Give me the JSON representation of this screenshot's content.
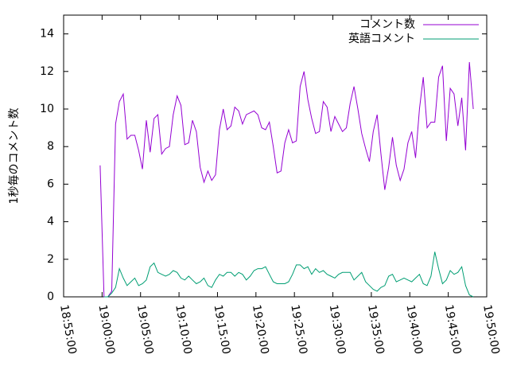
{
  "chart_data": {
    "type": "line",
    "y_label": "1秒毎のコメント数",
    "xlim": [
      "18:55:00",
      "19:50:00"
    ],
    "xticks": [
      "18:55:00",
      "19:00:00",
      "19:05:00",
      "19:10:00",
      "19:15:00",
      "19:20:00",
      "19:25:00",
      "19:30:00",
      "19:35:00",
      "19:40:00",
      "19:45:00",
      "19:50:00"
    ],
    "ylim": [
      0,
      15
    ],
    "yticks": [
      0,
      2,
      4,
      6,
      8,
      10,
      12,
      14
    ],
    "legend": "top right",
    "x": [
      "18:59:45",
      "19:00:15",
      "19:00:45",
      "19:01:15",
      "19:01:45",
      "19:02:15",
      "19:02:45",
      "19:03:15",
      "19:03:45",
      "19:04:15",
      "19:04:45",
      "19:05:15",
      "19:05:45",
      "19:06:15",
      "19:06:45",
      "19:07:15",
      "19:07:45",
      "19:08:15",
      "19:08:45",
      "19:09:15",
      "19:09:45",
      "19:10:15",
      "19:10:45",
      "19:11:15",
      "19:11:45",
      "19:12:15",
      "19:12:45",
      "19:13:15",
      "19:13:45",
      "19:14:15",
      "19:14:45",
      "19:15:15",
      "19:15:45",
      "19:16:15",
      "19:16:45",
      "19:17:15",
      "19:17:45",
      "19:18:15",
      "19:18:45",
      "19:19:15",
      "19:19:45",
      "19:20:15",
      "19:20:45",
      "19:21:15",
      "19:21:45",
      "19:22:15",
      "19:22:45",
      "19:23:15",
      "19:23:45",
      "19:24:15",
      "19:24:45",
      "19:25:15",
      "19:25:45",
      "19:26:15",
      "19:26:45",
      "19:27:15",
      "19:27:45",
      "19:28:15",
      "19:28:45",
      "19:29:15",
      "19:29:45",
      "19:30:15",
      "19:30:45",
      "19:31:15",
      "19:31:45",
      "19:32:15",
      "19:32:45",
      "19:33:15",
      "19:33:45",
      "19:34:15",
      "19:34:45",
      "19:35:15",
      "19:35:45",
      "19:36:15",
      "19:36:45",
      "19:37:15",
      "19:37:45",
      "19:38:15",
      "19:38:45",
      "19:39:15",
      "19:39:45",
      "19:40:15",
      "19:40:45",
      "19:41:15",
      "19:41:45",
      "19:42:15",
      "19:42:45",
      "19:43:15",
      "19:43:45",
      "19:44:15",
      "19:44:45",
      "19:45:15",
      "19:45:45",
      "19:46:15",
      "19:46:45",
      "19:47:15",
      "19:47:45",
      "19:48:15"
    ],
    "series": [
      {
        "name": "コメント数",
        "color": "#9400d3",
        "values": [
          7.0,
          0,
          0,
          0.3,
          9.2,
          10.4,
          10.8,
          8.4,
          8.6,
          8.6,
          7.8,
          6.8,
          9.4,
          7.7,
          9.5,
          9.7,
          7.6,
          7.9,
          8.0,
          9.7,
          10.7,
          10.2,
          8.1,
          8.2,
          9.4,
          8.8,
          6.9,
          6.1,
          6.7,
          6.2,
          6.5,
          8.9,
          10.0,
          8.9,
          9.1,
          10.1,
          9.9,
          9.2,
          9.7,
          9.8,
          9.9,
          9.7,
          9.0,
          8.9,
          9.3,
          8.0,
          6.6,
          6.7,
          8.2,
          8.9,
          8.2,
          8.3,
          11.2,
          12.0,
          10.5,
          9.5,
          8.7,
          8.8,
          10.4,
          10.1,
          8.8,
          9.6,
          9.2,
          8.8,
          9.0,
          10.3,
          11.2,
          10.0,
          8.7,
          7.9,
          7.2,
          8.8,
          9.7,
          7.6,
          5.7,
          6.9,
          8.5,
          7.0,
          6.2,
          6.8,
          8.2,
          8.8,
          7.4,
          10.0,
          11.7,
          9.0,
          9.3,
          9.3,
          11.7,
          12.3,
          8.3,
          11.1,
          10.8,
          9.1,
          10.6,
          7.8,
          12.5,
          10.0
        ]
      },
      {
        "name": "英語コメント",
        "color": "#009e73",
        "values": [
          null,
          0,
          0,
          0.2,
          0.5,
          1.5,
          1.0,
          0.6,
          0.8,
          1.0,
          0.6,
          0.7,
          0.9,
          1.6,
          1.8,
          1.3,
          1.2,
          1.1,
          1.2,
          1.4,
          1.3,
          1.0,
          0.9,
          1.1,
          0.9,
          0.7,
          0.8,
          1.0,
          0.6,
          0.5,
          0.9,
          1.2,
          1.1,
          1.3,
          1.3,
          1.1,
          1.3,
          1.2,
          0.9,
          1.1,
          1.4,
          1.5,
          1.5,
          1.6,
          1.2,
          0.8,
          0.7,
          0.7,
          0.7,
          0.8,
          1.2,
          1.7,
          1.7,
          1.5,
          1.6,
          1.2,
          1.5,
          1.3,
          1.4,
          1.2,
          1.1,
          1.0,
          1.2,
          1.3,
          1.3,
          1.3,
          0.9,
          1.1,
          1.3,
          0.8,
          0.6,
          0.4,
          0.3,
          0.5,
          0.6,
          1.1,
          1.2,
          0.8,
          0.9,
          1.0,
          0.9,
          0.8,
          1.0,
          1.2,
          0.7,
          0.6,
          1.1,
          2.4,
          1.5,
          0.7,
          0.9,
          1.4,
          1.2,
          1.3,
          1.6,
          0.6,
          0.1,
          0
        ]
      }
    ]
  }
}
